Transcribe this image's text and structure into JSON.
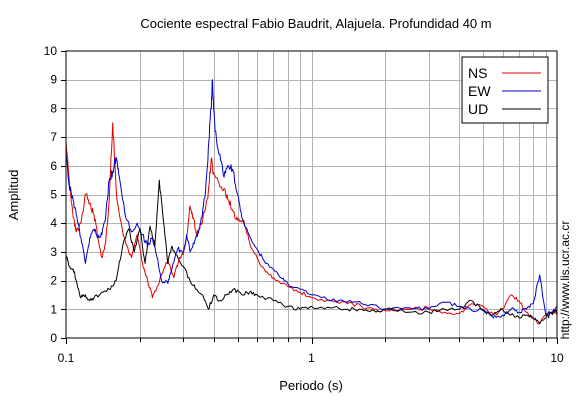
{
  "chart_data": {
    "type": "line",
    "title": "Cociente espectral Fabio Baudrit, Alajuela. Profundidad 40 m",
    "xlabel": "Periodo (s)",
    "ylabel": "Amplitud",
    "xscale": "log",
    "xlim": [
      0.1,
      10
    ],
    "ylim": [
      0,
      10
    ],
    "x_tick_labels": [
      "0.1",
      "1",
      "10"
    ],
    "y_tick_labels": [
      "0",
      "1",
      "2",
      "3",
      "4",
      "5",
      "6",
      "7",
      "8",
      "9",
      "10"
    ],
    "grid": true,
    "legend_position": "top-right",
    "side_note": "http://www.lis.ucr.ac.cr",
    "series": [
      {
        "name": "NS",
        "color": "#e00000",
        "points": [
          [
            0.1,
            6.9
          ],
          [
            0.103,
            5.5
          ],
          [
            0.107,
            4.2
          ],
          [
            0.11,
            3.7
          ],
          [
            0.115,
            4.0
          ],
          [
            0.12,
            5.0
          ],
          [
            0.125,
            4.7
          ],
          [
            0.13,
            4.3
          ],
          [
            0.135,
            3.5
          ],
          [
            0.14,
            2.8
          ],
          [
            0.145,
            3.3
          ],
          [
            0.15,
            4.8
          ],
          [
            0.155,
            7.5
          ],
          [
            0.16,
            5.2
          ],
          [
            0.165,
            4.3
          ],
          [
            0.175,
            3.3
          ],
          [
            0.185,
            2.8
          ],
          [
            0.195,
            3.6
          ],
          [
            0.205,
            2.6
          ],
          [
            0.215,
            2.0
          ],
          [
            0.225,
            1.4
          ],
          [
            0.235,
            1.8
          ],
          [
            0.25,
            2.4
          ],
          [
            0.26,
            2.7
          ],
          [
            0.275,
            2.1
          ],
          [
            0.29,
            2.8
          ],
          [
            0.3,
            2.9
          ],
          [
            0.31,
            3.5
          ],
          [
            0.32,
            4.6
          ],
          [
            0.33,
            4.2
          ],
          [
            0.34,
            3.6
          ],
          [
            0.35,
            3.8
          ],
          [
            0.37,
            4.5
          ],
          [
            0.38,
            5.1
          ],
          [
            0.39,
            6.2
          ],
          [
            0.4,
            5.7
          ],
          [
            0.42,
            5.4
          ],
          [
            0.44,
            5.2
          ],
          [
            0.46,
            4.8
          ],
          [
            0.48,
            4.4
          ],
          [
            0.5,
            4.1
          ],
          [
            0.53,
            4.1
          ],
          [
            0.56,
            3.3
          ],
          [
            0.6,
            2.8
          ],
          [
            0.65,
            2.3
          ],
          [
            0.7,
            2.1
          ],
          [
            0.8,
            1.8
          ],
          [
            0.9,
            1.6
          ],
          [
            1.0,
            1.4
          ],
          [
            1.2,
            1.3
          ],
          [
            1.4,
            1.2
          ],
          [
            1.6,
            1.1
          ],
          [
            1.8,
            1.0
          ],
          [
            2.0,
            0.95
          ],
          [
            2.5,
            1.0
          ],
          [
            3.0,
            1.05
          ],
          [
            3.5,
            0.9
          ],
          [
            4.0,
            0.85
          ],
          [
            4.5,
            1.2
          ],
          [
            5.0,
            1.1
          ],
          [
            5.5,
            0.8
          ],
          [
            6.0,
            1.0
          ],
          [
            6.5,
            1.5
          ],
          [
            7.0,
            1.3
          ],
          [
            7.5,
            0.9
          ],
          [
            8.0,
            0.7
          ],
          [
            8.5,
            0.5
          ],
          [
            9.0,
            0.8
          ],
          [
            9.5,
            0.9
          ],
          [
            10.0,
            0.9
          ]
        ]
      },
      {
        "name": "EW",
        "color": "#0000cc",
        "points": [
          [
            0.1,
            6.5
          ],
          [
            0.103,
            5.3
          ],
          [
            0.107,
            4.8
          ],
          [
            0.11,
            4.3
          ],
          [
            0.115,
            3.5
          ],
          [
            0.12,
            2.6
          ],
          [
            0.125,
            3.5
          ],
          [
            0.13,
            3.8
          ],
          [
            0.135,
            3.5
          ],
          [
            0.14,
            3.6
          ],
          [
            0.145,
            4.2
          ],
          [
            0.15,
            5.5
          ],
          [
            0.155,
            5.8
          ],
          [
            0.16,
            6.3
          ],
          [
            0.165,
            5.6
          ],
          [
            0.175,
            4.2
          ],
          [
            0.185,
            3.7
          ],
          [
            0.195,
            4.0
          ],
          [
            0.205,
            3.6
          ],
          [
            0.215,
            3.2
          ],
          [
            0.225,
            3.5
          ],
          [
            0.235,
            2.8
          ],
          [
            0.245,
            2.0
          ],
          [
            0.26,
            1.9
          ],
          [
            0.27,
            2.4
          ],
          [
            0.285,
            3.1
          ],
          [
            0.3,
            3.0
          ],
          [
            0.31,
            3.6
          ],
          [
            0.32,
            3.0
          ],
          [
            0.335,
            3.4
          ],
          [
            0.35,
            3.8
          ],
          [
            0.36,
            4.4
          ],
          [
            0.37,
            5.1
          ],
          [
            0.38,
            6.6
          ],
          [
            0.39,
            8.0
          ],
          [
            0.395,
            9.0
          ],
          [
            0.405,
            7.2
          ],
          [
            0.42,
            6.4
          ],
          [
            0.44,
            5.6
          ],
          [
            0.46,
            6.0
          ],
          [
            0.48,
            5.8
          ],
          [
            0.5,
            5.0
          ],
          [
            0.52,
            4.2
          ],
          [
            0.55,
            3.7
          ],
          [
            0.6,
            3.1
          ],
          [
            0.65,
            2.6
          ],
          [
            0.7,
            2.4
          ],
          [
            0.75,
            2.1
          ],
          [
            0.8,
            1.9
          ],
          [
            0.9,
            1.7
          ],
          [
            1.0,
            1.5
          ],
          [
            1.2,
            1.3
          ],
          [
            1.4,
            1.25
          ],
          [
            1.6,
            1.2
          ],
          [
            1.8,
            1.15
          ],
          [
            2.0,
            1.0
          ],
          [
            2.5,
            1.05
          ],
          [
            3.0,
            1.0
          ],
          [
            3.5,
            1.25
          ],
          [
            4.0,
            1.1
          ],
          [
            4.5,
            0.95
          ],
          [
            5.0,
            1.0
          ],
          [
            5.5,
            0.7
          ],
          [
            6.0,
            0.8
          ],
          [
            6.5,
            1.0
          ],
          [
            7.0,
            0.9
          ],
          [
            7.5,
            1.0
          ],
          [
            8.0,
            1.2
          ],
          [
            8.5,
            2.2
          ],
          [
            9.0,
            0.8
          ],
          [
            9.5,
            0.9
          ],
          [
            10.0,
            1.1
          ]
        ]
      },
      {
        "name": "UD",
        "color": "#000000",
        "points": [
          [
            0.1,
            2.9
          ],
          [
            0.103,
            2.5
          ],
          [
            0.107,
            2.4
          ],
          [
            0.11,
            2.0
          ],
          [
            0.115,
            1.4
          ],
          [
            0.12,
            1.5
          ],
          [
            0.125,
            1.3
          ],
          [
            0.13,
            1.4
          ],
          [
            0.14,
            1.6
          ],
          [
            0.15,
            1.7
          ],
          [
            0.16,
            2.0
          ],
          [
            0.17,
            3.2
          ],
          [
            0.18,
            3.8
          ],
          [
            0.19,
            3.0
          ],
          [
            0.2,
            3.8
          ],
          [
            0.21,
            2.6
          ],
          [
            0.22,
            3.9
          ],
          [
            0.23,
            3.2
          ],
          [
            0.24,
            5.5
          ],
          [
            0.25,
            4.0
          ],
          [
            0.26,
            2.6
          ],
          [
            0.27,
            3.2
          ],
          [
            0.28,
            2.9
          ],
          [
            0.3,
            2.5
          ],
          [
            0.32,
            2.0
          ],
          [
            0.34,
            1.7
          ],
          [
            0.36,
            1.5
          ],
          [
            0.38,
            1.0
          ],
          [
            0.4,
            1.5
          ],
          [
            0.42,
            1.3
          ],
          [
            0.45,
            1.5
          ],
          [
            0.48,
            1.7
          ],
          [
            0.52,
            1.5
          ],
          [
            0.56,
            1.6
          ],
          [
            0.6,
            1.5
          ],
          [
            0.7,
            1.3
          ],
          [
            0.8,
            1.1
          ],
          [
            0.9,
            1.0
          ],
          [
            1.0,
            1.1
          ],
          [
            1.2,
            1.05
          ],
          [
            1.4,
            1.0
          ],
          [
            1.6,
            1.0
          ],
          [
            1.8,
            0.95
          ],
          [
            2.0,
            1.0
          ],
          [
            2.5,
            0.9
          ],
          [
            3.0,
            0.9
          ],
          [
            3.5,
            1.0
          ],
          [
            4.0,
            1.0
          ],
          [
            4.5,
            1.3
          ],
          [
            5.0,
            0.95
          ],
          [
            5.5,
            0.8
          ],
          [
            6.0,
            1.0
          ],
          [
            6.5,
            0.8
          ],
          [
            7.0,
            0.7
          ],
          [
            7.5,
            0.8
          ],
          [
            8.0,
            0.7
          ],
          [
            8.5,
            0.5
          ],
          [
            9.0,
            0.7
          ],
          [
            9.5,
            0.85
          ],
          [
            10.0,
            1.0
          ]
        ]
      }
    ]
  }
}
